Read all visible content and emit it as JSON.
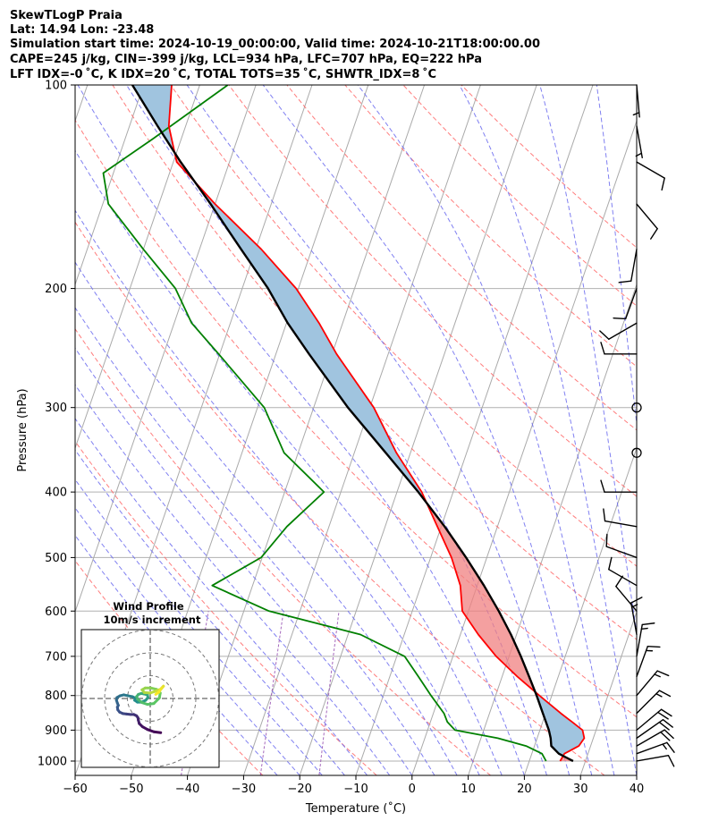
{
  "chart_data": {
    "type": "skewt",
    "title_lines": [
      "SkewTLogP Praia",
      "Lat: 14.94   Lon: -23.48",
      "Simulation start time: 2024-10-19_00:00:00, Valid time: 2024-10-21T18:00:00.00",
      "CAPE=245 j/kg, CIN=-399 j/kg, LCL=934 hPa, LFC=707 hPa, EQ=222 hPa",
      "LFT IDX=-0 ˚C, K IDX=20 ˚C, TOTAL TOTS=35 ˚C, SHWTR_IDX=8 ˚C"
    ],
    "xlabel": "Temperature (˚C)",
    "ylabel": "Pressure (hPa)",
    "xlim": [
      -60,
      40
    ],
    "ylim": [
      1050,
      100
    ],
    "x_ticks": [
      -60,
      -50,
      -40,
      -30,
      -20,
      -10,
      0,
      10,
      20,
      30,
      40
    ],
    "x_tick_labels": [
      "−60",
      "−50",
      "−40",
      "−30",
      "−20",
      "−10",
      "0",
      "10",
      "20",
      "30",
      "40"
    ],
    "y_ticks": [
      1000,
      900,
      800,
      700,
      600,
      500,
      400,
      300,
      200,
      100
    ],
    "y_tick_labels": [
      "1000",
      "900",
      "800",
      "700",
      "600",
      "500",
      "400",
      "300",
      "200",
      "100"
    ],
    "temperature": {
      "color": "#ff0000",
      "points": [
        [
          1000,
          25.5
        ],
        [
          975,
          25.8
        ],
        [
          950,
          27.9
        ],
        [
          925,
          28.4
        ],
        [
          900,
          27.6
        ],
        [
          875,
          25.2
        ],
        [
          850,
          22.7
        ],
        [
          800,
          17.8
        ],
        [
          750,
          12.7
        ],
        [
          700,
          7.7
        ],
        [
          650,
          3.2
        ],
        [
          600,
          -1.1
        ],
        [
          550,
          -3.0
        ],
        [
          500,
          -6.3
        ],
        [
          450,
          -10.7
        ],
        [
          400,
          -15.6
        ],
        [
          350,
          -22.5
        ],
        [
          300,
          -29.3
        ],
        [
          250,
          -39.2
        ],
        [
          225,
          -44.2
        ],
        [
          200,
          -50.4
        ],
        [
          175,
          -59.0
        ],
        [
          150,
          -70.0
        ],
        [
          130,
          -79.4
        ],
        [
          115,
          -83.0
        ],
        [
          100,
          -85.0
        ]
      ]
    },
    "dewpoint": {
      "color": "#008000",
      "points": [
        [
          1000,
          23.0
        ],
        [
          975,
          21.8
        ],
        [
          950,
          18.5
        ],
        [
          925,
          13.0
        ],
        [
          900,
          4.9
        ],
        [
          875,
          3.0
        ],
        [
          850,
          1.9
        ],
        [
          800,
          -1.5
        ],
        [
          750,
          -4.9
        ],
        [
          700,
          -8.6
        ],
        [
          650,
          -17.8
        ],
        [
          600,
          -35.5
        ],
        [
          550,
          -47.2
        ],
        [
          500,
          -40.2
        ],
        [
          450,
          -37.5
        ],
        [
          400,
          -33.0
        ],
        [
          350,
          -42.5
        ],
        [
          300,
          -48.8
        ],
        [
          250,
          -60.2
        ],
        [
          225,
          -66.9
        ],
        [
          200,
          -71.9
        ],
        [
          175,
          -80.0
        ],
        [
          150,
          -89.0
        ],
        [
          135,
          -91.8
        ],
        [
          120,
          -85.0
        ],
        [
          100,
          -75.0
        ]
      ]
    },
    "parcel": {
      "color": "#000000",
      "points": [
        [
          1000,
          27.8
        ],
        [
          975,
          24.8
        ],
        [
          950,
          23.0
        ],
        [
          925,
          22.4
        ],
        [
          900,
          21.6
        ],
        [
          850,
          19.5
        ],
        [
          800,
          17.3
        ],
        [
          750,
          14.8
        ],
        [
          700,
          12.1
        ],
        [
          650,
          9.0
        ],
        [
          600,
          5.4
        ],
        [
          550,
          1.2
        ],
        [
          500,
          -3.7
        ],
        [
          450,
          -9.4
        ],
        [
          400,
          -16.2
        ],
        [
          350,
          -24.4
        ],
        [
          300,
          -33.9
        ],
        [
          250,
          -44.1
        ],
        [
          225,
          -49.8
        ],
        [
          200,
          -55.4
        ],
        [
          175,
          -62.6
        ],
        [
          150,
          -70.8
        ],
        [
          130,
          -78.7
        ],
        [
          115,
          -85.0
        ],
        [
          100,
          -92.0
        ]
      ]
    },
    "shading": {
      "cape_color": "#f08080",
      "cin_color": "#a0c4df"
    },
    "reference_lines": {
      "isotherm_color": "#aaaaaa",
      "dry_adiabat_color": "#ff6666",
      "moist_adiabat_color": "#6a6aee",
      "mixing_ratio_color": "#9b59b6"
    },
    "wind_barbs": {
      "color": "#000000",
      "barbs": [
        {
          "p": 1000,
          "speed_kt": 10,
          "dir_deg": 80
        },
        {
          "p": 975,
          "speed_kt": 15,
          "dir_deg": 70
        },
        {
          "p": 950,
          "speed_kt": 20,
          "dir_deg": 60
        },
        {
          "p": 925,
          "speed_kt": 20,
          "dir_deg": 55
        },
        {
          "p": 900,
          "speed_kt": 20,
          "dir_deg": 50
        },
        {
          "p": 850,
          "speed_kt": 15,
          "dir_deg": 45
        },
        {
          "p": 800,
          "speed_kt": 15,
          "dir_deg": 40
        },
        {
          "p": 750,
          "speed_kt": 15,
          "dir_deg": 20
        },
        {
          "p": 700,
          "speed_kt": 15,
          "dir_deg": 10
        },
        {
          "p": 650,
          "speed_kt": 15,
          "dir_deg": 350
        },
        {
          "p": 600,
          "speed_kt": 10,
          "dir_deg": 320
        },
        {
          "p": 550,
          "speed_kt": 10,
          "dir_deg": 300
        },
        {
          "p": 500,
          "speed_kt": 10,
          "dir_deg": 290
        },
        {
          "p": 450,
          "speed_kt": 10,
          "dir_deg": 280
        },
        {
          "p": 400,
          "speed_kt": 10,
          "dir_deg": 270
        },
        {
          "p": 350,
          "speed_kt": 0,
          "dir_deg": 0
        },
        {
          "p": 300,
          "speed_kt": 0,
          "dir_deg": 0
        },
        {
          "p": 250,
          "speed_kt": 10,
          "dir_deg": 270
        },
        {
          "p": 225,
          "speed_kt": 10,
          "dir_deg": 240
        },
        {
          "p": 200,
          "speed_kt": 10,
          "dir_deg": 200
        },
        {
          "p": 175,
          "speed_kt": 10,
          "dir_deg": 190
        },
        {
          "p": 150,
          "speed_kt": 10,
          "dir_deg": 140
        },
        {
          "p": 130,
          "speed_kt": 10,
          "dir_deg": 120
        },
        {
          "p": 115,
          "speed_kt": 5,
          "dir_deg": 170
        },
        {
          "p": 100,
          "speed_kt": 5,
          "dir_deg": 175
        }
      ]
    },
    "hodograph": {
      "title_lines": [
        "Wind Profile",
        "10m/s increment"
      ],
      "ring_increment_ms": 10,
      "ring_count": 3,
      "colormap": [
        "#440154",
        "#3b528b",
        "#21918c",
        "#5ec962",
        "#fde725"
      ],
      "points": [
        [
          2.3,
          -7.5
        ],
        [
          0.8,
          -7.3
        ],
        [
          -0.6,
          -6.8
        ],
        [
          -1.7,
          -6.2
        ],
        [
          -2.4,
          -5.5
        ],
        [
          -2.6,
          -4.8
        ],
        [
          -2.7,
          -4.2
        ],
        [
          -3.0,
          -3.8
        ],
        [
          -3.6,
          -3.5
        ],
        [
          -4.3,
          -3.5
        ],
        [
          -5.2,
          -3.4
        ],
        [
          -6.0,
          -3.3
        ],
        [
          -6.7,
          -3.0
        ],
        [
          -7.1,
          -2.5
        ],
        [
          -7.2,
          -1.9
        ],
        [
          -7.0,
          -1.5
        ],
        [
          -7.2,
          -1.0
        ],
        [
          -7.4,
          -0.4
        ],
        [
          -7.3,
          0.2
        ],
        [
          -6.6,
          0.6
        ],
        [
          -5.8,
          0.8
        ],
        [
          -4.9,
          0.6
        ],
        [
          -3.9,
          0.4
        ],
        [
          -3.3,
          0.1
        ],
        [
          -3.4,
          -0.4
        ],
        [
          -2.8,
          -0.8
        ],
        [
          -1.9,
          -0.8
        ],
        [
          -1.0,
          -0.4
        ],
        [
          -0.5,
          0.2
        ],
        [
          -0.6,
          0.8
        ],
        [
          -1.4,
          1.0
        ],
        [
          -2.0,
          1.1
        ],
        [
          -2.6,
          0.9
        ],
        [
          -3.0,
          0.4
        ],
        [
          -2.7,
          -0.2
        ],
        [
          -1.8,
          -0.9
        ],
        [
          -0.6,
          -1.3
        ],
        [
          0.8,
          -1.1
        ],
        [
          2.0,
          0.1
        ],
        [
          2.2,
          1.2
        ],
        [
          1.4,
          2.0
        ],
        [
          0.1,
          2.3
        ],
        [
          -1.1,
          2.3
        ],
        [
          -1.8,
          1.9
        ],
        [
          -1.3,
          1.3
        ],
        [
          0.0,
          1.2
        ],
        [
          1.2,
          1.6
        ],
        [
          2.4,
          2.1
        ],
        [
          2.9,
          2.7
        ],
        [
          2.5,
          2.3
        ],
        [
          1.9,
          1.4
        ],
        [
          1.2,
          0.9
        ]
      ]
    }
  }
}
